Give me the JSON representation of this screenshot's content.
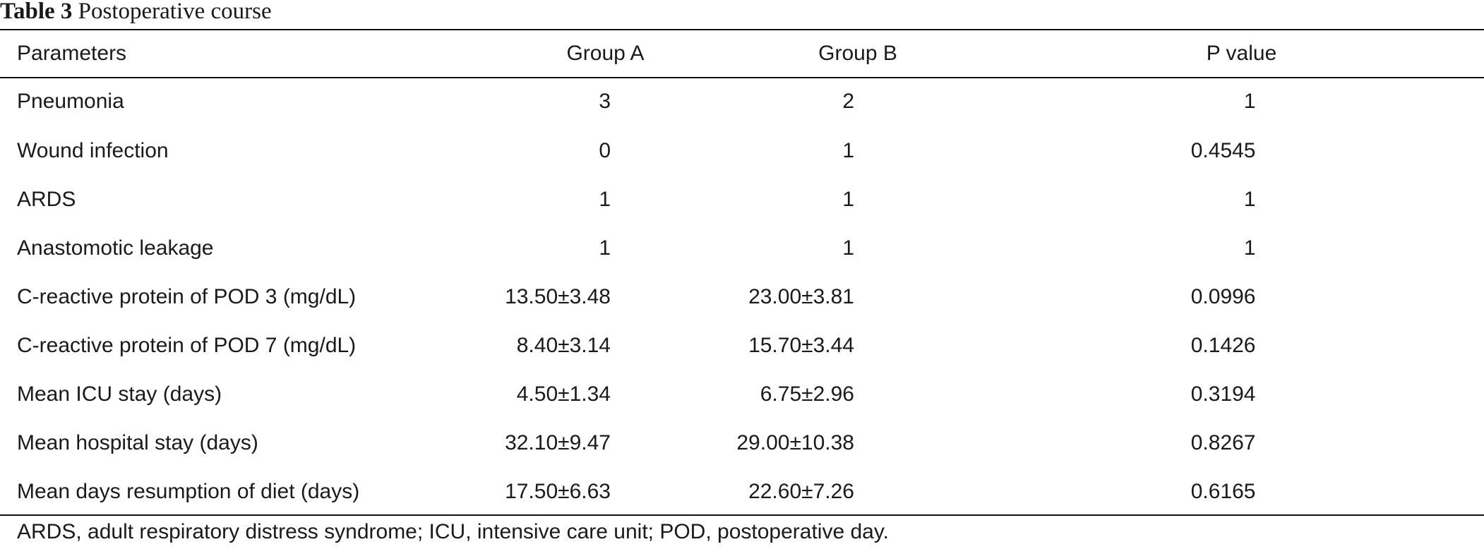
{
  "caption": {
    "label": "Table 3",
    "title": "Postoperative course"
  },
  "table": {
    "columns": [
      "Parameters",
      "Group A",
      "Group B",
      "P value"
    ],
    "rows": [
      [
        "Pneumonia",
        "3",
        "2",
        "1"
      ],
      [
        "Wound infection",
        "0",
        "1",
        "0.4545"
      ],
      [
        "ARDS",
        "1",
        "1",
        "1"
      ],
      [
        "Anastomotic leakage",
        "1",
        "1",
        "1"
      ],
      [
        "C-reactive protein of POD 3 (mg/dL)",
        "13.50±3.48",
        "23.00±3.81",
        "0.0996"
      ],
      [
        "C-reactive protein of POD 7 (mg/dL)",
        "8.40±3.14",
        "15.70±3.44",
        "0.1426"
      ],
      [
        "Mean ICU stay (days)",
        "4.50±1.34",
        "6.75±2.96",
        "0.3194"
      ],
      [
        "Mean hospital stay (days)",
        "32.10±9.47",
        "29.00±10.38",
        "0.8267"
      ],
      [
        "Mean days resumption of diet (days)",
        "17.50±6.63",
        "22.60±7.26",
        "0.6165"
      ]
    ]
  },
  "footnote": "ARDS, adult respiratory distress syndrome; ICU, intensive care unit; POD, postoperative day."
}
